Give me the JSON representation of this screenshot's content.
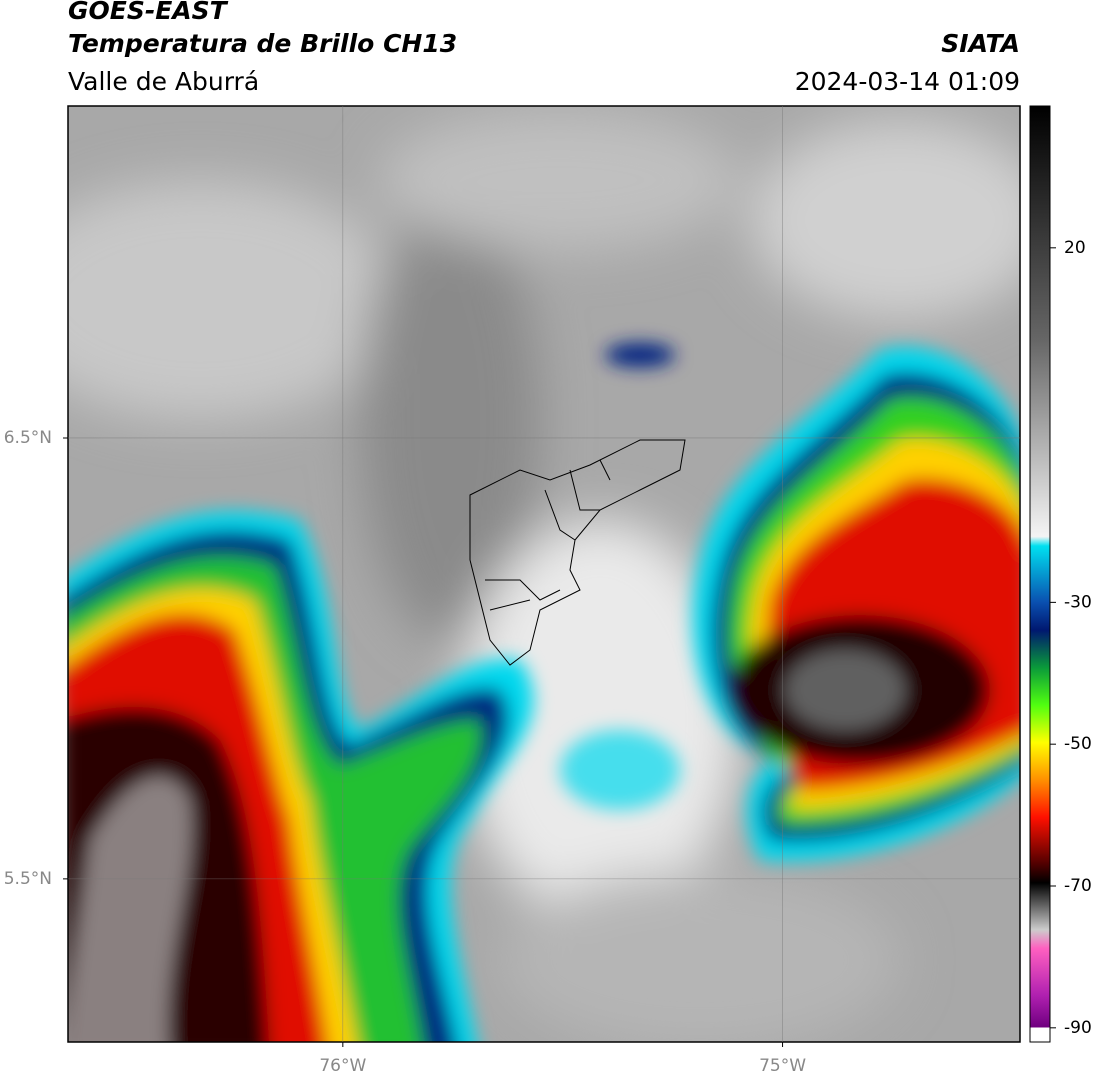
{
  "header": {
    "title": "GOES-EAST",
    "subtitle": "Temperatura de Brillo CH13",
    "region": "Valle de Aburrá",
    "source": "SIATA",
    "datetime": "2024-03-14 01:09"
  },
  "map": {
    "xlim": [
      -76.625,
      -74.46
    ],
    "ylim": [
      5.13,
      7.253
    ],
    "xticks": [
      {
        "value": -76,
        "label": "76°W"
      },
      {
        "value": -75,
        "label": "75°W"
      }
    ],
    "yticks": [
      {
        "value": 6.5,
        "label": "6.5°N"
      },
      {
        "value": 5.5,
        "label": "5.5°N"
      }
    ],
    "grid": true
  },
  "colorbar": {
    "lim": [
      -92,
      40
    ],
    "ticks": [
      20,
      -30,
      -50,
      -70,
      -90
    ]
  }
}
